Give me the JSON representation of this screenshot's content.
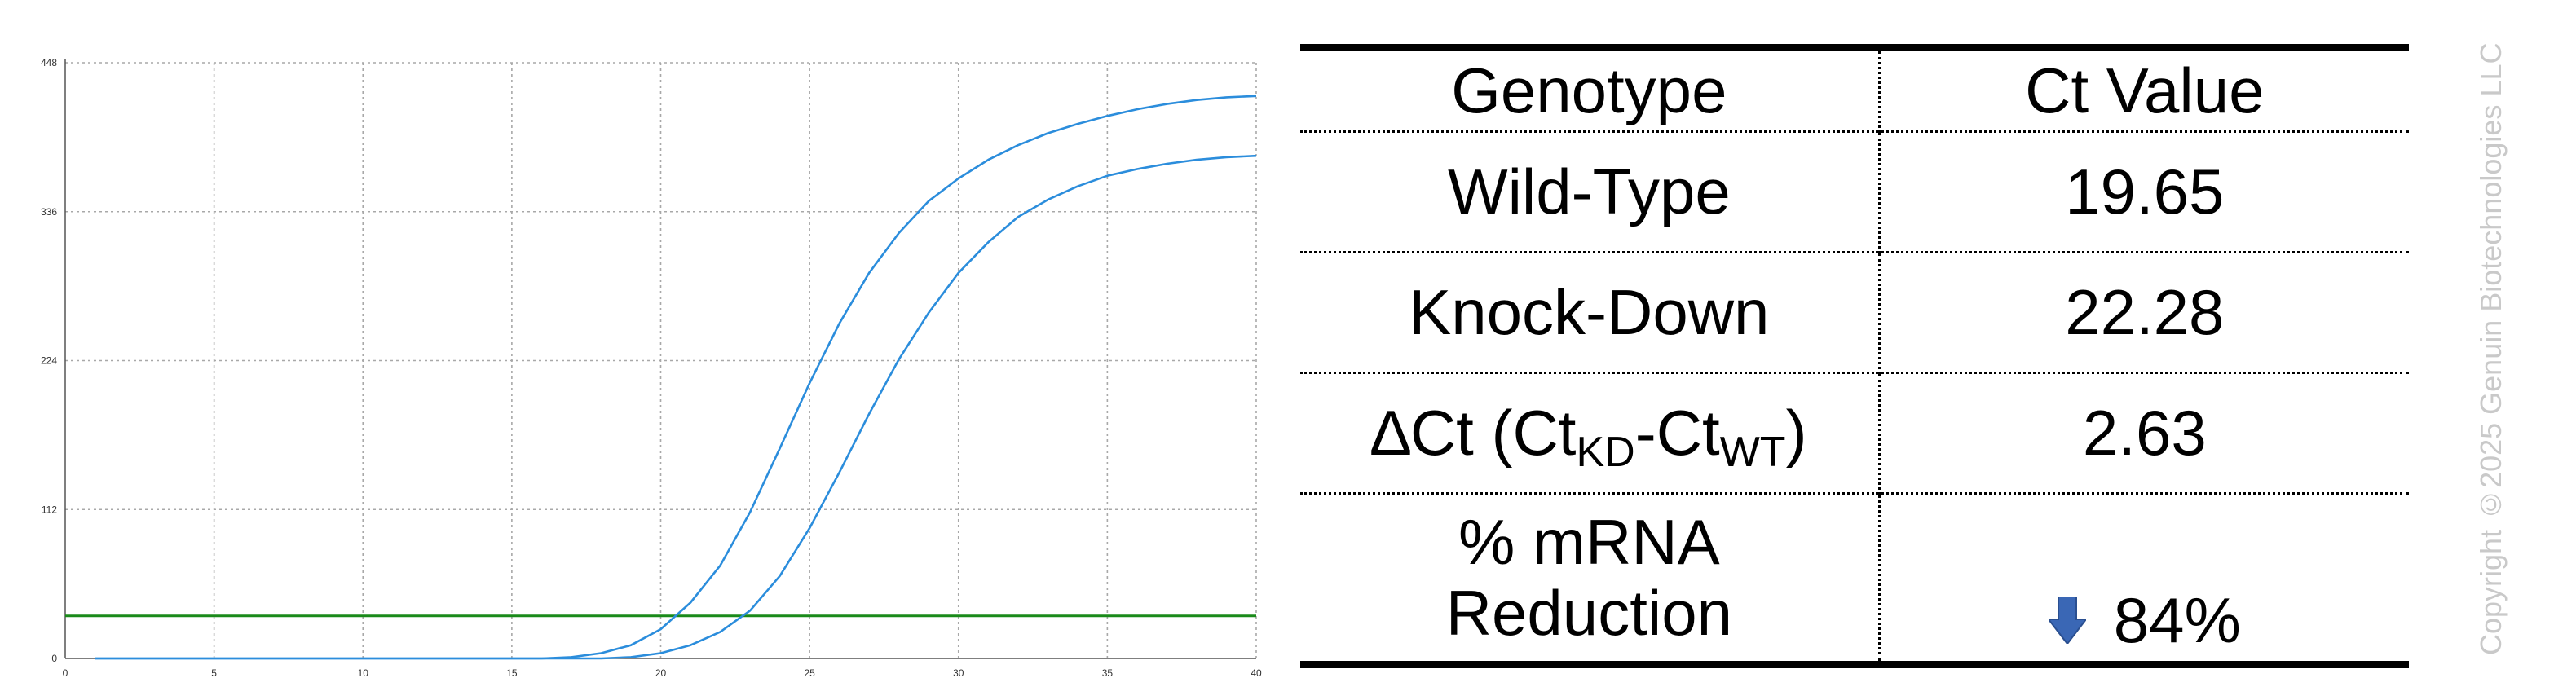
{
  "chart_data": {
    "type": "line",
    "title": "",
    "xlabel": "",
    "ylabel": "",
    "xlim": [
      0,
      40
    ],
    "ylim": [
      0,
      448
    ],
    "xticks": [
      0,
      5,
      10,
      15,
      20,
      25,
      30,
      35,
      40
    ],
    "yticks": [
      0,
      112,
      224,
      336,
      448
    ],
    "grid": true,
    "threshold": 32,
    "colors": {
      "curves": "#2b8ddc",
      "threshold": "#1a8a1a",
      "grid": "#a8a8a8"
    },
    "series": [
      {
        "x": [
          1,
          16,
          17,
          18,
          19,
          20,
          21,
          22,
          23,
          24,
          25,
          26,
          27,
          28,
          29,
          30,
          31,
          32,
          33,
          34,
          35,
          36,
          37,
          38,
          39,
          40
        ],
        "values": [
          0,
          0,
          1,
          4,
          10,
          22,
          42,
          70,
          110,
          158,
          207,
          252,
          290,
          320,
          344,
          361,
          375,
          386,
          395,
          402,
          408,
          413,
          417,
          420,
          422,
          423
        ]
      },
      {
        "x": [
          1,
          18,
          19,
          20,
          21,
          22,
          23,
          24,
          25,
          26,
          27,
          28,
          29,
          30,
          31,
          32,
          33,
          34,
          35,
          36,
          37,
          38,
          39,
          40
        ],
        "values": [
          0,
          0,
          1,
          4,
          10,
          20,
          36,
          62,
          98,
          140,
          184,
          225,
          260,
          290,
          313,
          332,
          345,
          355,
          363,
          368,
          372,
          375,
          377,
          378
        ]
      }
    ]
  },
  "table": {
    "header": {
      "genotype": "Genotype",
      "ct": "Ct Value"
    },
    "wild_type": {
      "label": "Wild-Type",
      "value": "19.65"
    },
    "knock_down": {
      "label": "Knock-Down",
      "value": "22.28"
    },
    "delta": {
      "prefix": "∆Ct (Ct",
      "sub_kd": "KD",
      "dash": "-Ct",
      "sub_wt": "WT",
      "suffix": ")",
      "value": "2.63"
    },
    "reduction": {
      "line1": "% mRNA",
      "line2": "Reduction",
      "value": "84%",
      "icon": "arrow-down-icon",
      "icon_color": "#3a67b5"
    }
  },
  "watermark": "Copyright ©2025 Genuin Biotechnologies LLC"
}
